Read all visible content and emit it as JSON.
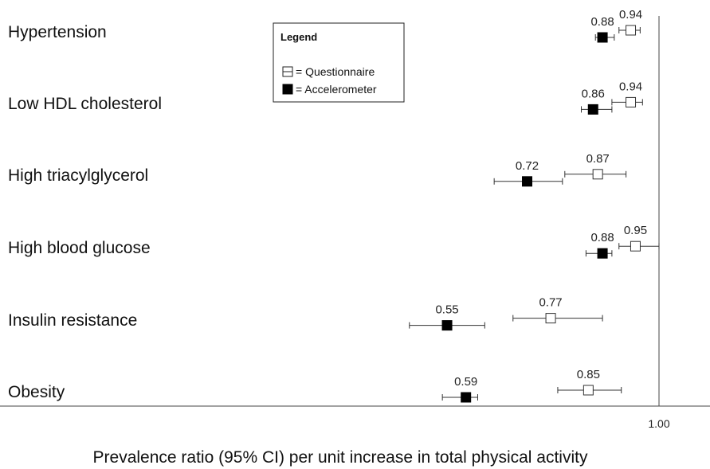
{
  "chart_data": {
    "type": "scatter",
    "title": "",
    "xlabel": "Prevalence ratio (95% CI) per unit increase in total physical activity",
    "ylabel": "",
    "reference_tick": "1.00",
    "reference_value": 1.0,
    "categories": [
      "Hypertension",
      "Low HDL cholesterol",
      "High triacylglycerol",
      "High blood glucose",
      "Insulin resistance",
      "Obesity"
    ],
    "legend": {
      "title": "Legend",
      "items": [
        {
          "marker": "open-square",
          "label": "= Questionnaire"
        },
        {
          "marker": "filled-square",
          "label": "= Accelerometer"
        }
      ]
    },
    "series": [
      {
        "name": "Questionnaire",
        "marker": "open-square",
        "points": [
          {
            "label": "0.94",
            "value": 0.94,
            "ci": [
              0.915,
              0.96
            ]
          },
          {
            "label": "0.94",
            "value": 0.94,
            "ci": [
              0.9,
              0.965
            ]
          },
          {
            "label": "0.87",
            "value": 0.87,
            "ci": [
              0.8,
              0.93
            ]
          },
          {
            "label": "0.95",
            "value": 0.95,
            "ci": [
              0.915,
              1.0
            ]
          },
          {
            "label": "0.77",
            "value": 0.77,
            "ci": [
              0.69,
              0.88
            ]
          },
          {
            "label": "0.85",
            "value": 0.85,
            "ci": [
              0.785,
              0.92
            ]
          }
        ]
      },
      {
        "name": "Accelerometer",
        "marker": "filled-square",
        "points": [
          {
            "label": "0.88",
            "value": 0.88,
            "ci": [
              0.865,
              0.905
            ]
          },
          {
            "label": "0.86",
            "value": 0.86,
            "ci": [
              0.835,
              0.9
            ]
          },
          {
            "label": "0.72",
            "value": 0.72,
            "ci": [
              0.65,
              0.795
            ]
          },
          {
            "label": "0.88",
            "value": 0.88,
            "ci": [
              0.845,
              0.9
            ]
          },
          {
            "label": "0.55",
            "value": 0.55,
            "ci": [
              0.47,
              0.63
            ]
          },
          {
            "label": "0.59",
            "value": 0.59,
            "ci": [
              0.54,
              0.615
            ]
          }
        ]
      }
    ],
    "grid": false,
    "legend_placement": "top-center"
  }
}
